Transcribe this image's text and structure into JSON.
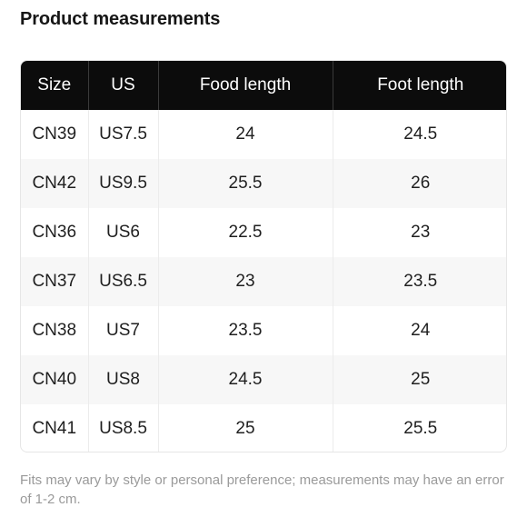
{
  "title": "Product measurements",
  "table": {
    "headers": [
      "Size",
      "US",
      "Food length",
      "Foot length"
    ],
    "rows": [
      [
        "CN39",
        "US7.5",
        "24",
        "24.5"
      ],
      [
        "CN42",
        "US9.5",
        "25.5",
        "26"
      ],
      [
        "CN36",
        "US6",
        "22.5",
        "23"
      ],
      [
        "CN37",
        "US6.5",
        "23",
        "23.5"
      ],
      [
        "CN38",
        "US7",
        "23.5",
        "24"
      ],
      [
        "CN40",
        "US8",
        "24.5",
        "25"
      ],
      [
        "CN41",
        "US8.5",
        "25",
        "25.5"
      ]
    ]
  },
  "note": "Fits may vary by style or personal preference; measurements may have an error of 1-2 cm."
}
